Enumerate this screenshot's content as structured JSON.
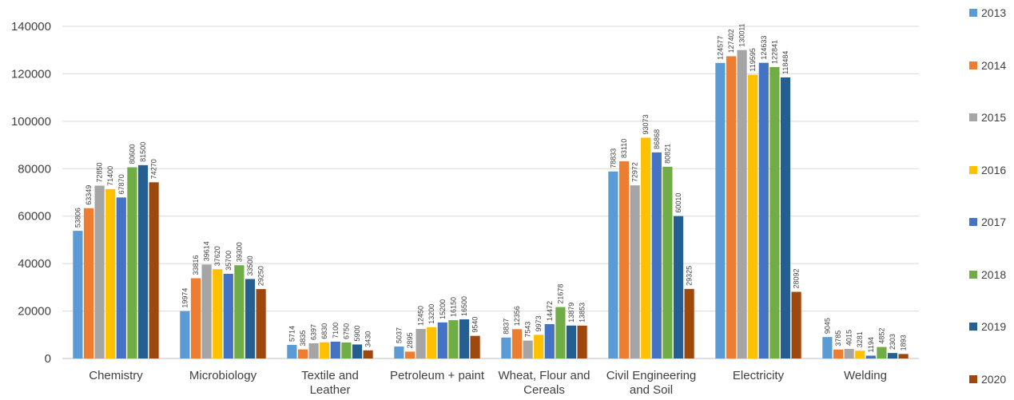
{
  "chart_data": {
    "type": "bar",
    "title": "",
    "xlabel": "",
    "ylabel": "",
    "ylim": [
      0,
      140000
    ],
    "yticks": [
      0,
      20000,
      40000,
      60000,
      80000,
      100000,
      120000,
      140000
    ],
    "grid": true,
    "legend_position": "right",
    "categories": [
      [
        "Chemistry"
      ],
      [
        "Microbiology"
      ],
      [
        "Textile and",
        "Leather"
      ],
      [
        "Petroleum + paint"
      ],
      [
        "Wheat, Flour and",
        "Cereals"
      ],
      [
        "Civil Engineering",
        "and Soil"
      ],
      [
        "Electricity"
      ],
      [
        "Welding"
      ]
    ],
    "series": [
      {
        "name": "2013",
        "color": "#5B9BD5",
        "values": [
          53806,
          19974,
          5714,
          5037,
          8837,
          78833,
          124577,
          9045
        ]
      },
      {
        "name": "2014",
        "color": "#ED7D31",
        "values": [
          63349,
          33816,
          3835,
          2895,
          12356,
          83110,
          127402,
          3785
        ]
      },
      {
        "name": "2015",
        "color": "#A5A5A5",
        "values": [
          72850,
          39614,
          6397,
          12450,
          7543,
          72972,
          130011,
          4015
        ]
      },
      {
        "name": "2016",
        "color": "#FFC000",
        "values": [
          71400,
          37620,
          6830,
          13200,
          9973,
          93073,
          119595,
          3281
        ]
      },
      {
        "name": "2017",
        "color": "#4472C4",
        "values": [
          67870,
          35700,
          7100,
          15200,
          14472,
          86868,
          124633,
          1194
        ]
      },
      {
        "name": "2018",
        "color": "#70AD47",
        "values": [
          80600,
          39300,
          6750,
          16150,
          21678,
          80821,
          122841,
          4852
        ]
      },
      {
        "name": "2019",
        "color": "#255E91",
        "values": [
          81500,
          33500,
          5900,
          16500,
          13879,
          60010,
          118484,
          2303
        ]
      },
      {
        "name": "2020",
        "color": "#9E480E",
        "values": [
          74270,
          29250,
          3430,
          9540,
          13853,
          29325,
          28092,
          1893
        ]
      }
    ]
  }
}
